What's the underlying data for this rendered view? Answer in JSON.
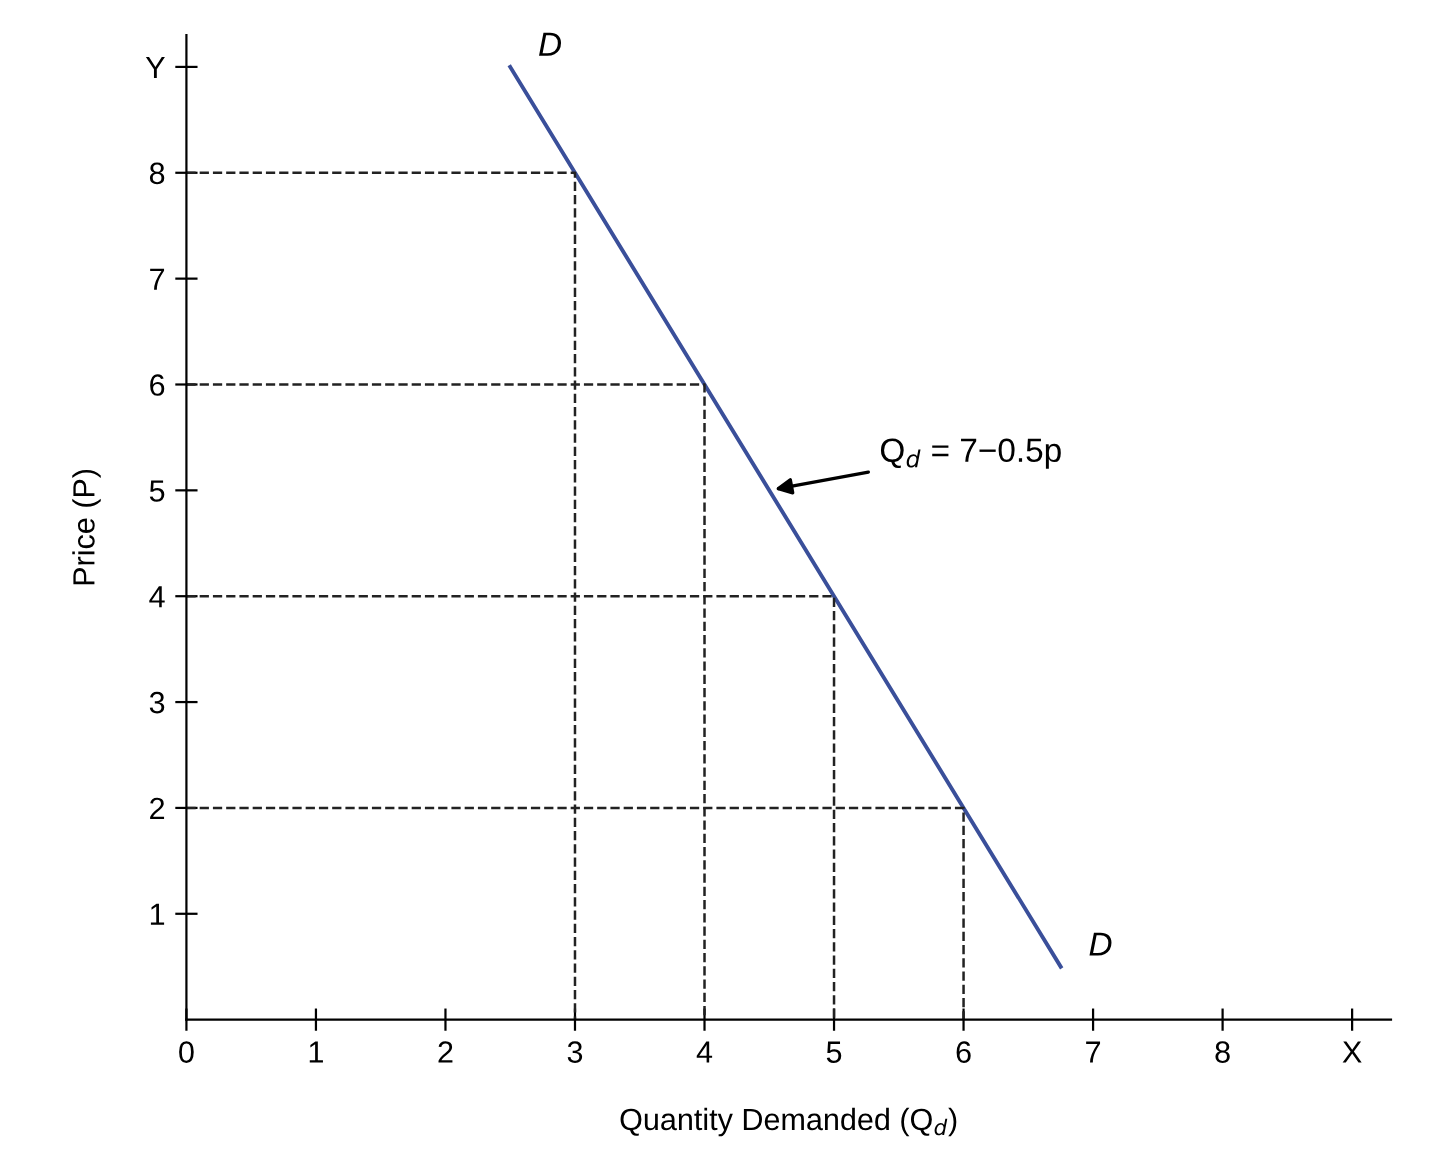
{
  "chart_data": {
    "type": "line",
    "xlabel": "Quantity Demanded (Q$_{d}$)",
    "ylabel": "Price (P)",
    "xlim": [
      0,
      9.3
    ],
    "ylim": [
      0,
      9.3
    ],
    "xticks": [
      0,
      1,
      2,
      3,
      4,
      5,
      6,
      7,
      8,
      {
        "value": 9,
        "label": "X"
      }
    ],
    "yticks": [
      1,
      2,
      3,
      4,
      5,
      6,
      7,
      8,
      {
        "value": 9,
        "label": "Y"
      }
    ],
    "grid": false,
    "marker": "none",
    "series": [
      {
        "color": "#3a4f9a",
        "line_style": "solid",
        "x": [
          2.5,
          3,
          4,
          5,
          6,
          6.75
        ],
        "values": [
          9,
          8,
          6,
          4,
          2,
          0.5
        ]
      },
      {
        "color": "#222222",
        "line_style": "dashed",
        "x": [
          0,
          3,
          3
        ],
        "values": [
          8,
          8,
          0
        ]
      },
      {
        "color": "#222222",
        "line_style": "dashed",
        "x": [
          0,
          4,
          4
        ],
        "values": [
          6,
          6,
          0
        ]
      },
      {
        "color": "#222222",
        "line_style": "dashed",
        "x": [
          0,
          5,
          5
        ],
        "values": [
          4,
          4,
          0
        ]
      },
      {
        "color": "#222222",
        "line_style": "dashed",
        "x": [
          0,
          6,
          6
        ],
        "values": [
          2,
          2,
          0
        ]
      }
    ],
    "annotations": [
      {
        "text": "D",
        "x": 2.5,
        "y": 9
      },
      {
        "text": "D",
        "x": 6.75,
        "y": 0.5
      },
      {
        "text": "Q$_{d}$ = 7−0.5p",
        "x": 4.5,
        "y": 5
      }
    ]
  }
}
